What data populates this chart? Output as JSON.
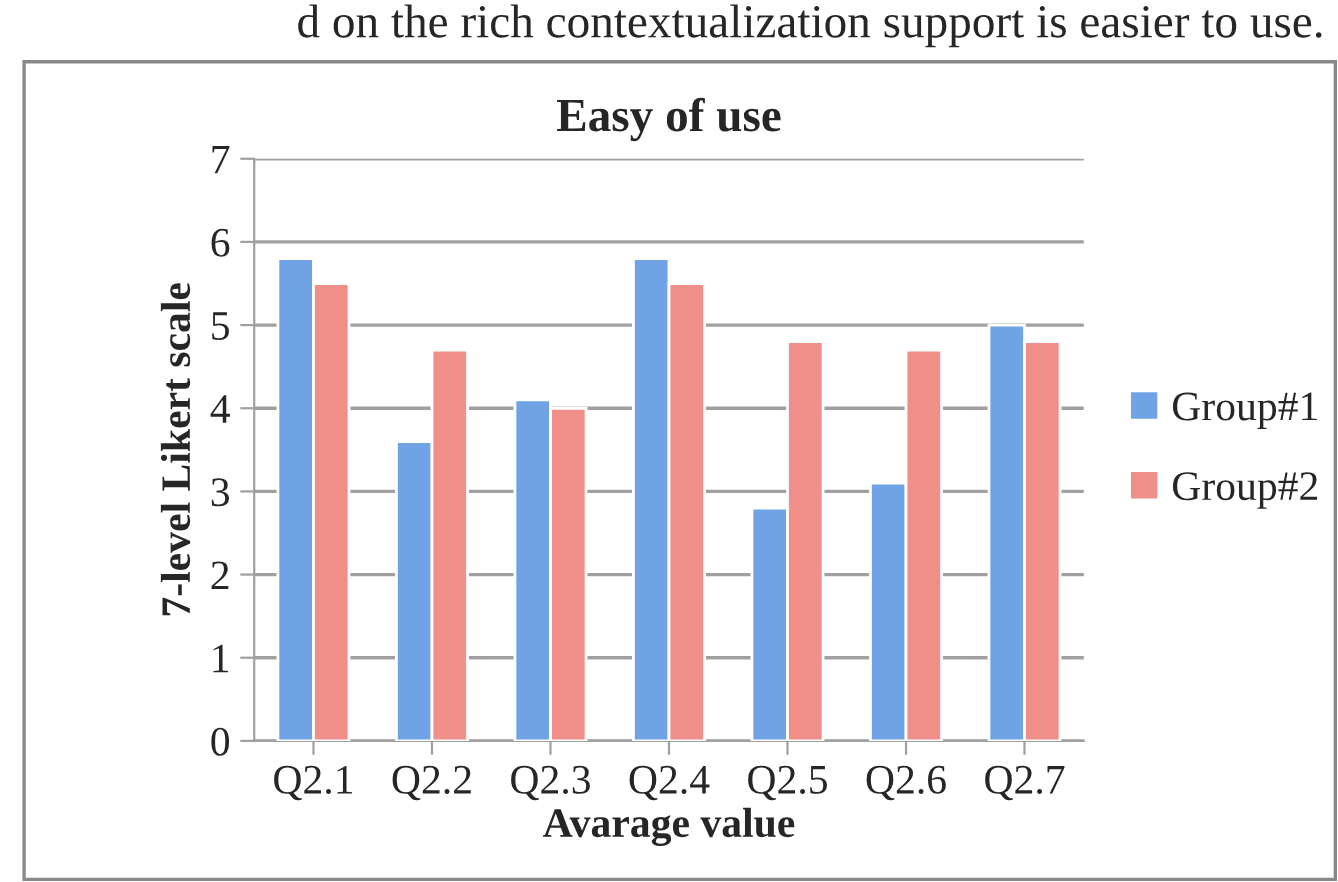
{
  "chart_data": {
    "type": "bar",
    "title": "Easy of use",
    "xlabel": "Avarage value",
    "ylabel": "7-level Likert scale",
    "annotations": [
      "d on the rich contextualization support is easier to use."
    ],
    "categories": [
      "Q2.1",
      "Q2.2",
      "Q2.3",
      "Q2.4",
      "Q2.5",
      "Q2.6",
      "Q2.7"
    ],
    "series": [
      {
        "name": "Group#1",
        "color": "#6fa3e6",
        "values": [
          5.8,
          3.6,
          4.1,
          5.8,
          2.8,
          3.1,
          5.0
        ]
      },
      {
        "name": "Group#2",
        "color": "#f08f89",
        "values": [
          5.5,
          4.7,
          4.0,
          5.5,
          4.8,
          4.7,
          4.8
        ]
      }
    ],
    "ylim": [
      0,
      7
    ],
    "yticks": [
      0,
      1,
      2,
      3,
      4,
      5,
      6,
      7
    ],
    "grid": "y",
    "legend": "right"
  }
}
